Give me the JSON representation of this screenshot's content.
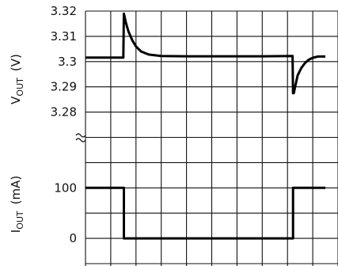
{
  "chart_data": [
    {
      "type": "line",
      "panel": "output-voltage",
      "ylabel": {
        "main": "V",
        "sub": "OUT",
        "unit": "(V)"
      },
      "ylim": [
        3.28,
        3.32
      ],
      "yticks": [
        "3.32",
        "3.31",
        "3.3",
        "3.29",
        "3.28"
      ],
      "ytick_values": [
        3.32,
        3.31,
        3.3,
        3.29,
        3.28
      ],
      "grid": true,
      "series": [
        {
          "x": [
            0,
            1.5,
            1.52,
            1.6,
            1.7,
            1.85,
            2.0,
            2.2,
            2.5,
            3.0,
            4.0,
            5.0,
            6.0,
            7.0,
            8.2,
            8.22,
            8.25,
            8.3,
            8.4,
            8.55,
            8.7,
            8.85,
            9.0,
            9.2,
            9.5
          ],
          "y": [
            3.3016,
            3.3016,
            3.319,
            3.3155,
            3.312,
            3.3085,
            3.306,
            3.304,
            3.3028,
            3.3022,
            3.3021,
            3.3021,
            3.3021,
            3.3021,
            3.3022,
            3.2875,
            3.2875,
            3.29,
            3.2945,
            3.2975,
            3.2995,
            3.3008,
            3.3015,
            3.302,
            3.302
          ]
        }
      ]
    },
    {
      "type": "line",
      "panel": "output-current",
      "ylabel": {
        "main": "I",
        "sub": "OUT",
        "unit": "(mA)"
      },
      "yticks": [
        "100",
        "0"
      ],
      "ytick_values": [
        100,
        0
      ],
      "grid": true,
      "series": [
        {
          "x": [
            0,
            1.52,
            1.52,
            8.22,
            8.22,
            9.5
          ],
          "y": [
            100,
            100,
            0,
            0,
            100,
            100
          ]
        }
      ]
    }
  ]
}
